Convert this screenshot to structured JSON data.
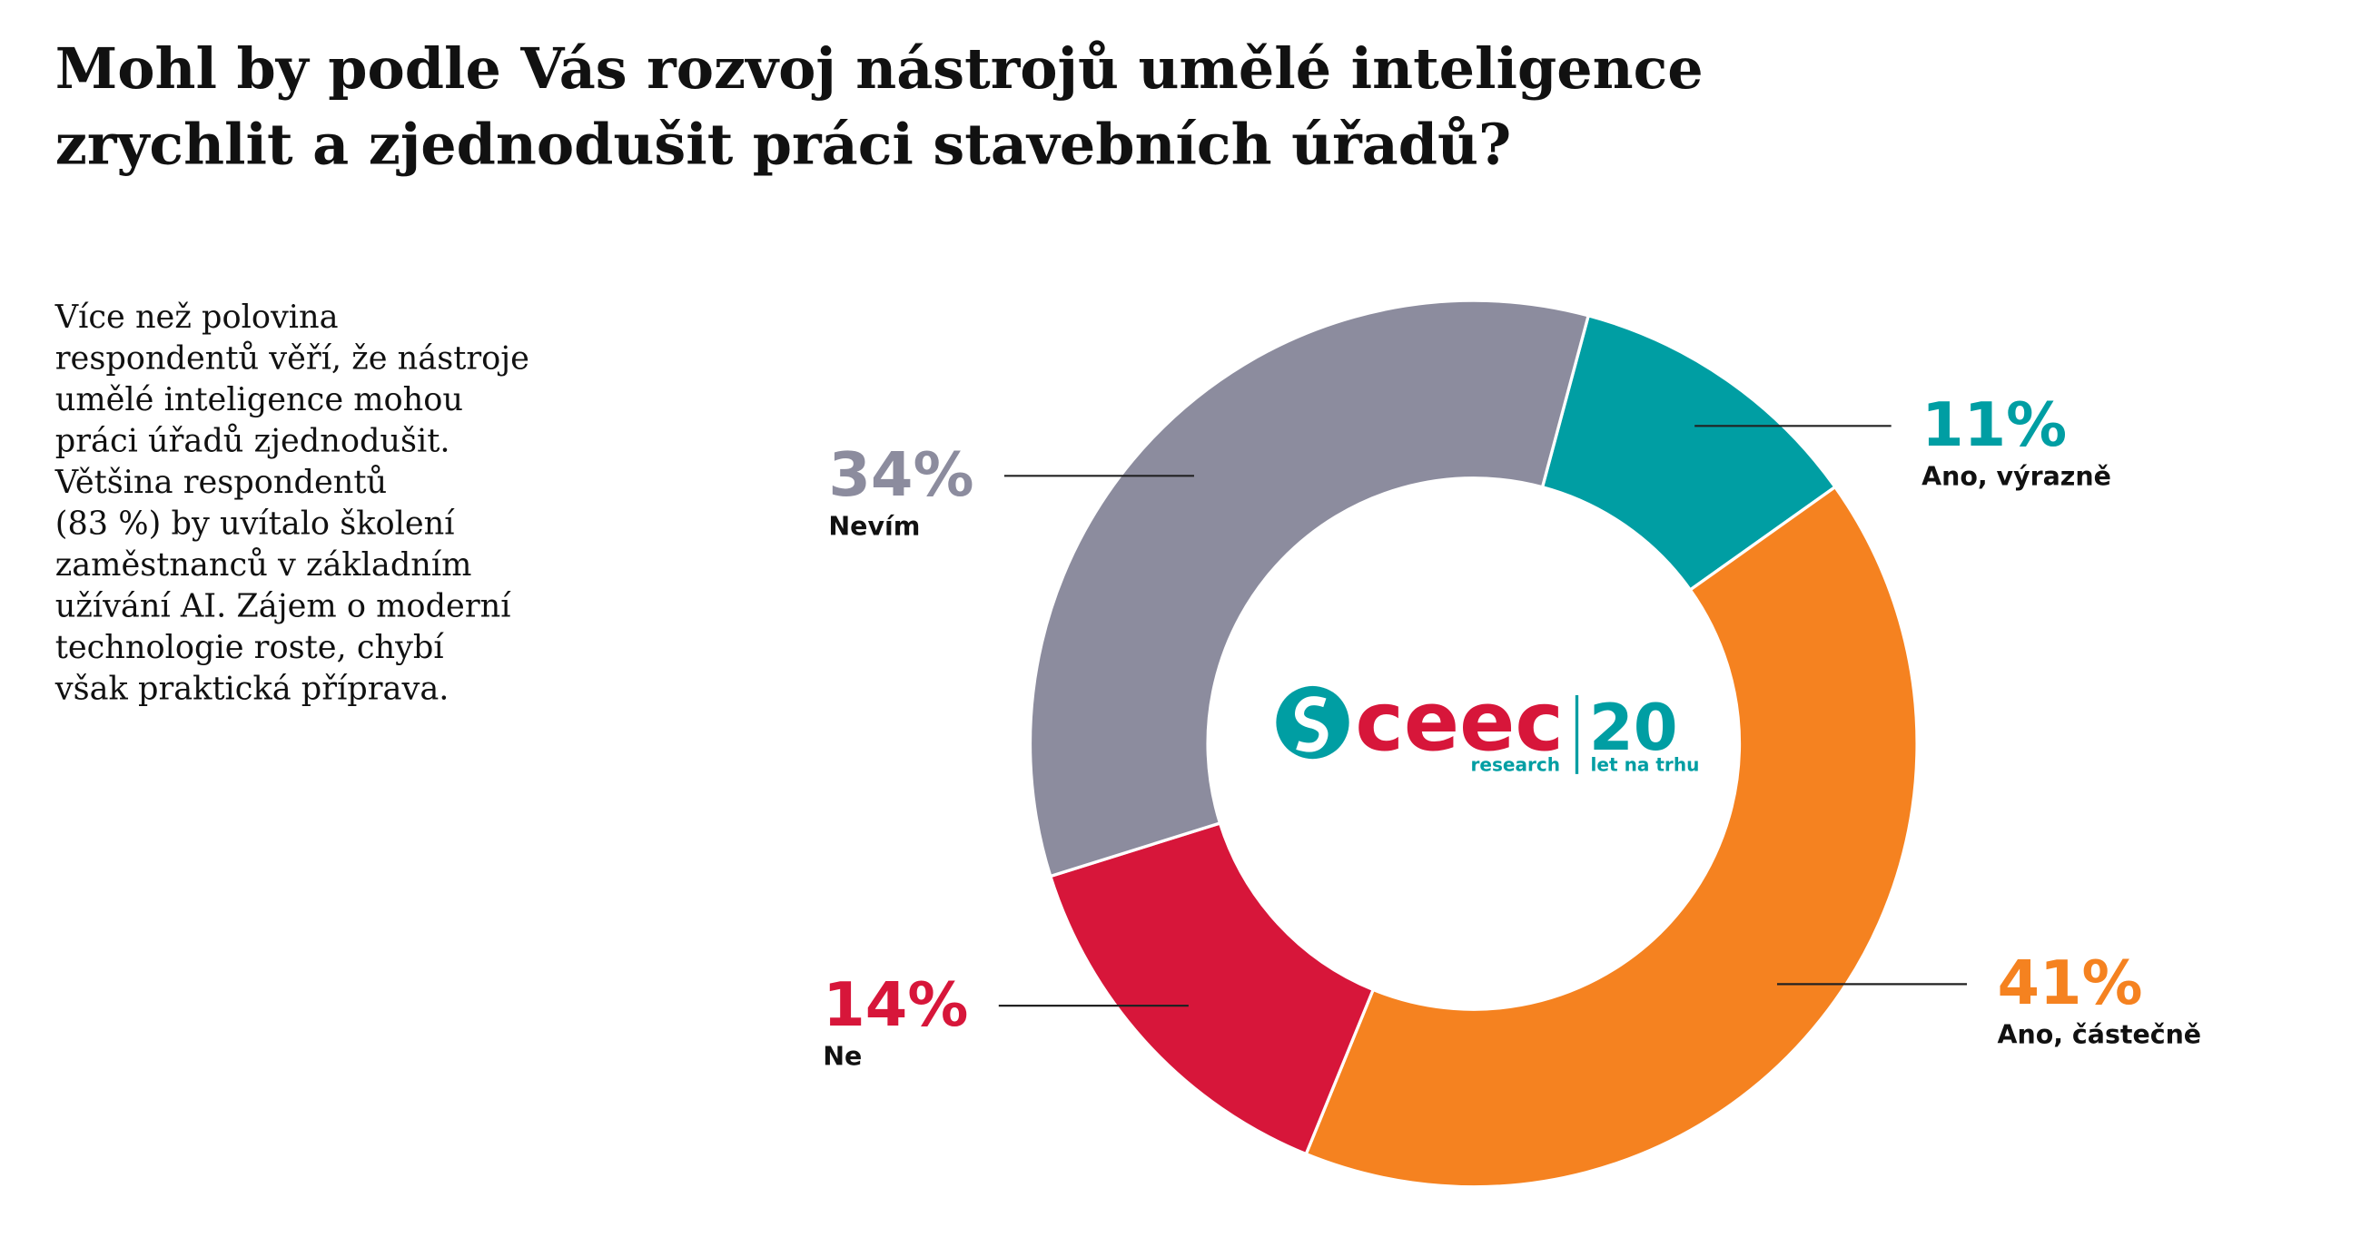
{
  "chart_data": {
    "type": "donut",
    "title": [
      "Mohl by podle Vás rozvoj nástrojů umělé inteligence",
      "zrychlit a zjednodušit práci stavebních úřadů?"
    ],
    "categories": [
      "Ano, výrazně",
      "Ano, částečně",
      "Ne",
      "Nevím"
    ],
    "values": [
      11,
      41,
      14,
      34
    ],
    "value_labels": [
      "11%",
      "41%",
      "14%",
      "34%"
    ],
    "colors": [
      "#009ea3",
      "#f58220",
      "#d7163a",
      "#8c8c9e"
    ]
  },
  "description": [
    "Více než polovina",
    "respondentů věří, že nástroje",
    "umělé inteligence mohou",
    "práci úřadů zjednodušit.",
    "Většina respondentů",
    "(83 %) by uvítalo školení",
    "zaměstnanců v základním",
    "užívání AI. Zájem o moderní",
    "technologie roste, chybí",
    "však praktická příprava."
  ],
  "logo": {
    "name": "ceec",
    "sub": "research",
    "years": "20",
    "years_sub": "let na trhu"
  }
}
